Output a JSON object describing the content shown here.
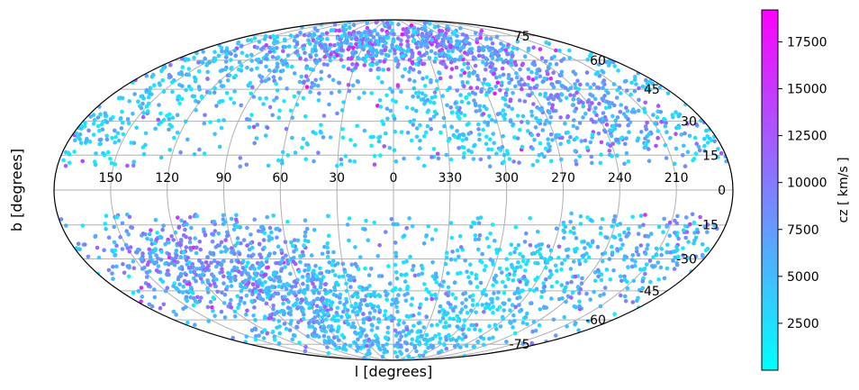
{
  "chart_data": {
    "type": "scatter",
    "projection": "mollweide",
    "title": "",
    "xlabel": "l  [degrees]",
    "ylabel": "b  [degrees]",
    "colorbar_label": "cz  [ km/s ]",
    "colormap": "cool",
    "colormap_colors": [
      "#00ffff",
      "#ff00ff"
    ],
    "colorbar_range": [
      0,
      19200
    ],
    "colorbar_ticks": [
      2500,
      5000,
      7500,
      10000,
      12500,
      15000,
      17500
    ],
    "colorbar_tick_labels": [
      "2500",
      "5000",
      "7500",
      "10000",
      "12500",
      "15000",
      "17500"
    ],
    "longitude_ticks": [
      150,
      120,
      90,
      60,
      30,
      0,
      330,
      300,
      270,
      240,
      210
    ],
    "longitude_tick_labels": [
      "150",
      "120",
      "90",
      "60",
      "30",
      "0",
      "330",
      "300",
      "270",
      "240",
      "210"
    ],
    "latitude_ticks": [
      75,
      60,
      45,
      30,
      15,
      0,
      -15,
      -30,
      -45,
      -60,
      -75
    ],
    "latitude_tick_labels": [
      "75",
      "60",
      "45",
      "30",
      "15",
      "0",
      "-15",
      "-30",
      "-45",
      "-60",
      "-75"
    ],
    "grid": true,
    "galactic_plane_gap_deg": 10,
    "legend": "none",
    "point_clusters": [
      {
        "l": 150,
        "b": 52,
        "count": 150,
        "spread": [
          30,
          14
        ],
        "cz": [
          2000,
          7000
        ]
      },
      {
        "l": 85,
        "b": 60,
        "count": 160,
        "spread": [
          35,
          12
        ],
        "cz": [
          3000,
          11000
        ]
      },
      {
        "l": 30,
        "b": 68,
        "count": 220,
        "spread": [
          40,
          8
        ],
        "cz": [
          3000,
          15000
        ]
      },
      {
        "l": 320,
        "b": 68,
        "count": 200,
        "spread": [
          40,
          8
        ],
        "cz": [
          3000,
          16000
        ]
      },
      {
        "l": 285,
        "b": 55,
        "count": 140,
        "spread": [
          25,
          12
        ],
        "cz": [
          3000,
          12000
        ]
      },
      {
        "l": 255,
        "b": 40,
        "count": 160,
        "spread": [
          25,
          15
        ],
        "cz": [
          4000,
          14000
        ]
      },
      {
        "l": 225,
        "b": 30,
        "count": 120,
        "spread": [
          20,
          15
        ],
        "cz": [
          3000,
          12000
        ]
      },
      {
        "l": 310,
        "b": 28,
        "count": 120,
        "spread": [
          25,
          12
        ],
        "cz": [
          1000,
          6000
        ]
      },
      {
        "l": 0,
        "b": 32,
        "count": 80,
        "spread": [
          40,
          15
        ],
        "cz": [
          1000,
          6000
        ]
      },
      {
        "l": 165,
        "b": 22,
        "count": 110,
        "spread": [
          25,
          10
        ],
        "cz": [
          1000,
          5000
        ]
      },
      {
        "l": 130,
        "b": -32,
        "count": 260,
        "spread": [
          30,
          14
        ],
        "cz": [
          4000,
          13000
        ]
      },
      {
        "l": 85,
        "b": -35,
        "count": 320,
        "spread": [
          28,
          14
        ],
        "cz": [
          4000,
          13000
        ]
      },
      {
        "l": 55,
        "b": -45,
        "count": 180,
        "spread": [
          25,
          12
        ],
        "cz": [
          2500,
          8000
        ]
      },
      {
        "l": 40,
        "b": -58,
        "count": 120,
        "spread": [
          30,
          10
        ],
        "cz": [
          2000,
          8000
        ]
      },
      {
        "l": 330,
        "b": -50,
        "count": 150,
        "spread": [
          35,
          15
        ],
        "cz": [
          1500,
          7000
        ]
      },
      {
        "l": 290,
        "b": -40,
        "count": 130,
        "spread": [
          25,
          15
        ],
        "cz": [
          1000,
          6000
        ]
      },
      {
        "l": 250,
        "b": -30,
        "count": 130,
        "spread": [
          22,
          15
        ],
        "cz": [
          1500,
          8000
        ]
      },
      {
        "l": 210,
        "b": -25,
        "count": 90,
        "spread": [
          15,
          15
        ],
        "cz": [
          3000,
          12000
        ]
      },
      {
        "l": 0,
        "b": -72,
        "count": 110,
        "spread": [
          60,
          6
        ],
        "cz": [
          2000,
          8000
        ]
      },
      {
        "l": 180,
        "b": 0,
        "count": 900,
        "spread": [
          180,
          50
        ],
        "cz": [
          1000,
          10000
        ],
        "uniform": true
      }
    ]
  }
}
